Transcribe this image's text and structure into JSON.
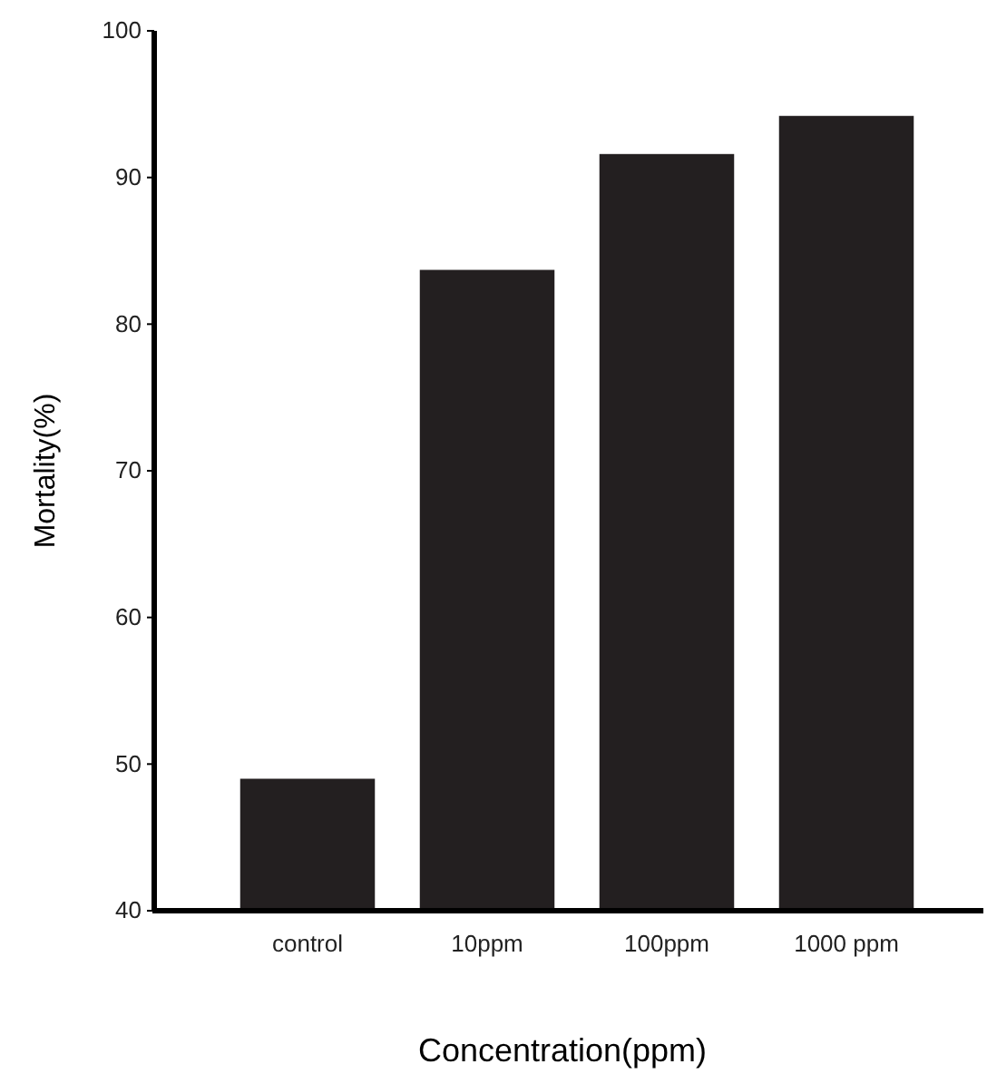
{
  "chart_data": {
    "type": "bar",
    "xlabel": "Concentration(ppm)",
    "ylabel": "Mortality(%)",
    "categories": [
      "control",
      "10ppm",
      "100ppm",
      "1000 ppm"
    ],
    "values": [
      49.0,
      83.7,
      91.6,
      94.2
    ],
    "color": "#231f20",
    "ylim": [
      40,
      100
    ],
    "yticks": [
      40,
      50,
      60,
      70,
      80,
      90,
      100
    ],
    "grid": false
  }
}
